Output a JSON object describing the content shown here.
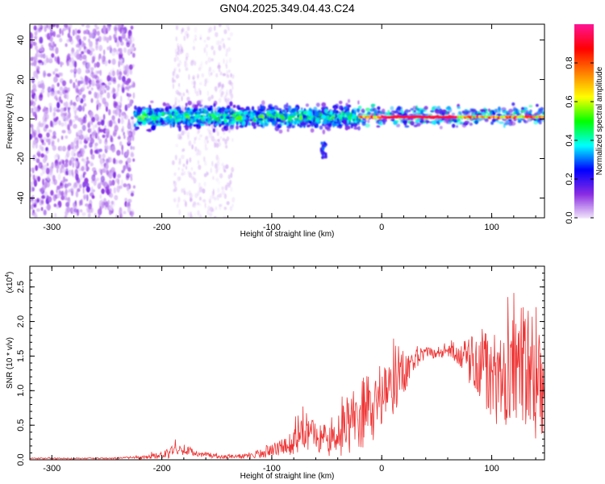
{
  "chart_data": [
    {
      "type": "heatmap",
      "title": "GN04.2025.349.04.43.C24",
      "xlabel": "Height of straight line (km)",
      "ylabel": "Frequency (Hz)",
      "xlim": [
        -320,
        148
      ],
      "ylim": [
        -50,
        48
      ],
      "x_ticks": [
        -300,
        -200,
        -100,
        0,
        100
      ],
      "x_tick_labels": [
        "-300",
        "-200",
        "-100",
        "0",
        "100"
      ],
      "y_ticks": [
        -40,
        -20,
        0,
        20,
        40
      ],
      "y_tick_labels": [
        "-40",
        "-20",
        "0",
        "20",
        "40"
      ],
      "colorbar": {
        "label": "Normalized spectral amplitude",
        "range": [
          0.0,
          1.0
        ],
        "ticks": [
          0.0,
          0.2,
          0.4,
          0.6,
          0.8
        ],
        "tick_labels": [
          "0.0",
          "0.2",
          "0.4",
          "0.6",
          "0.8"
        ],
        "colors": [
          "#f0e6fa",
          "#8a2be2",
          "#0000ff",
          "#00ffff",
          "#00ff00",
          "#ffff00",
          "#ff8000",
          "#ff0000",
          "#ff1493"
        ]
      },
      "regions": [
        {
          "x_from": -320,
          "x_to": -225,
          "freq_from": -50,
          "freq_to": 48,
          "amplitude": 0.05,
          "pattern": "scattered noise"
        },
        {
          "x_from": -190,
          "x_to": -135,
          "freq_from": -50,
          "freq_to": 48,
          "amplitude": 0.02,
          "pattern": "faint scattered noise"
        },
        {
          "x_from": -225,
          "x_to": -20,
          "freq_from": -8,
          "freq_to": 8,
          "amplitude": 0.35,
          "pattern": "band near 0 Hz"
        },
        {
          "x_from": -20,
          "x_to": 148,
          "freq_from": -2,
          "freq_to": 3,
          "amplitude": 0.95,
          "pattern": "strong line at ~1 Hz"
        },
        {
          "x_from": -55,
          "x_to": -50,
          "freq_from": -20,
          "freq_to": -12,
          "amplitude": 0.2,
          "pattern": "blob"
        }
      ]
    },
    {
      "type": "line",
      "ylabel": "SNR (10 * v/v)",
      "y_multiplier": "(x10",
      "y_multiplier_exp": "4",
      "y_multiplier_close": ")",
      "xlabel": "Height of straight line (km)",
      "xlim": [
        -320,
        148
      ],
      "ylim": [
        0,
        2.8
      ],
      "x_ticks": [
        -300,
        -200,
        -100,
        0,
        100
      ],
      "x_tick_labels": [
        "-300",
        "-200",
        "-100",
        "0",
        "100"
      ],
      "y_ticks": [
        0.0,
        0.5,
        1.0,
        1.5,
        2.0,
        2.5
      ],
      "y_tick_labels": [
        "0.0",
        "0.5",
        "1.0",
        "1.5",
        "2.0",
        "2.5"
      ],
      "series": [
        {
          "name": "SNR",
          "color": "#ee3333",
          "x": [
            -320,
            -300,
            -250,
            -220,
            -200,
            -190,
            -180,
            -170,
            -150,
            -130,
            -120,
            -110,
            -100,
            -90,
            -80,
            -70,
            -60,
            -50,
            -40,
            -30,
            -20,
            -10,
            0,
            10,
            20,
            30,
            40,
            50,
            60,
            70,
            80,
            90,
            100,
            110,
            120,
            130,
            140,
            148
          ],
          "y": [
            0.02,
            0.02,
            0.02,
            0.03,
            0.06,
            0.12,
            0.15,
            0.1,
            0.05,
            0.05,
            0.06,
            0.1,
            0.14,
            0.18,
            0.25,
            0.38,
            0.32,
            0.3,
            0.4,
            0.5,
            0.62,
            0.75,
            0.95,
            1.05,
            1.25,
            1.45,
            1.55,
            1.55,
            1.57,
            1.53,
            1.45,
            1.35,
            1.2,
            1.05,
            1.25,
            1.4,
            1.1,
            1.0
          ],
          "noise_amplitude": [
            0.01,
            0.01,
            0.01,
            0.02,
            0.05,
            0.09,
            0.08,
            0.05,
            0.03,
            0.03,
            0.05,
            0.08,
            0.1,
            0.12,
            0.18,
            0.25,
            0.25,
            0.25,
            0.35,
            0.45,
            0.55,
            0.55,
            0.45,
            0.4,
            0.3,
            0.15,
            0.08,
            0.08,
            0.08,
            0.15,
            0.35,
            0.55,
            0.65,
            0.7,
            0.85,
            0.95,
            0.85,
            0.6
          ]
        }
      ]
    }
  ]
}
